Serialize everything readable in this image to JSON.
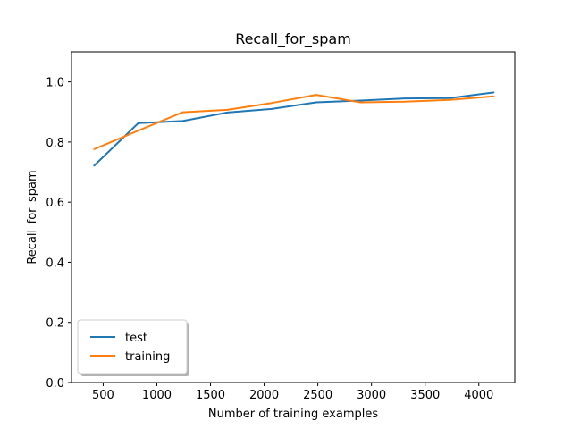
{
  "chart_data": {
    "type": "line",
    "title": "Recall_for_spam",
    "xlabel": "Number of training examples",
    "ylabel": "Recall_for_spam",
    "xlim": [
      205,
      4335
    ],
    "ylim": [
      0.0,
      1.1
    ],
    "xticks": [
      500,
      1000,
      1500,
      2000,
      2500,
      3000,
      3500,
      4000
    ],
    "xtick_labels": [
      "500",
      "1000",
      "1500",
      "2000",
      "2500",
      "3000",
      "3500",
      "4000"
    ],
    "yticks": [
      0.0,
      0.2,
      0.4,
      0.6,
      0.8,
      1.0
    ],
    "ytick_labels": [
      "0.0",
      "0.2",
      "0.4",
      "0.6",
      "0.8",
      "1.0"
    ],
    "grid": false,
    "legend_position": "lower-left",
    "series": [
      {
        "name": "test",
        "color": "#1f77b4",
        "x": [
          414,
          828,
          1242,
          1656,
          2070,
          2484,
          2898,
          3312,
          3726,
          4140
        ],
        "y": [
          0.721,
          0.863,
          0.87,
          0.898,
          0.91,
          0.932,
          0.938,
          0.945,
          0.946,
          0.965
        ]
      },
      {
        "name": "training",
        "color": "#ff7f0e",
        "x": [
          414,
          828,
          1242,
          1656,
          2070,
          2484,
          2898,
          3312,
          3726,
          4140
        ],
        "y": [
          0.776,
          0.838,
          0.899,
          0.907,
          0.93,
          0.957,
          0.932,
          0.934,
          0.94,
          0.952
        ]
      }
    ]
  }
}
